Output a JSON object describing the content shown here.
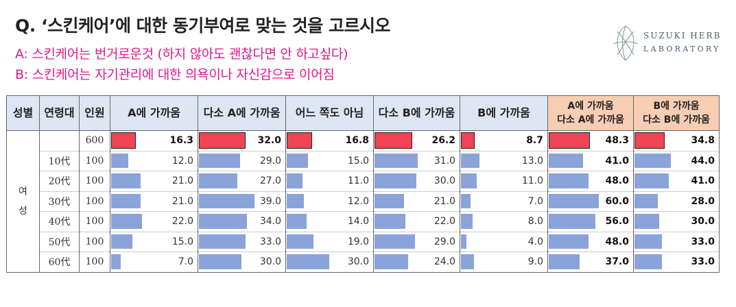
{
  "title": "Q. ‘스킨케어’에 대한 동기부여로 맞는 것을 고르시오",
  "option_a": "A: 스킨케어는 번거로운것 (하지 않아도 괜찮다면 안 하고싶다)",
  "option_b": "B: 스킨케어는 자기관리에 대한 의욕이나 자신감으로 이어짐",
  "logo": {
    "line1": "SUZUKI HERB",
    "line2": "LABORATORY"
  },
  "chart_data": {
    "type": "table",
    "columns": [
      "성별",
      "연령대",
      "인원",
      "A에 가까움",
      "다소 A에 가까움",
      "어느 쪽도 아님",
      "다소 B에 가까움",
      "B에 가까움",
      "A에 가까움\n다소 A에 가까움",
      "B에 가까움\n다소 B에 가까움"
    ],
    "gender": "여성",
    "rows": [
      {
        "age": "",
        "n": "600",
        "values": [
          16.3,
          32.0,
          16.8,
          26.2,
          8.7,
          48.3,
          34.8
        ]
      },
      {
        "age": "10代",
        "n": "100",
        "values": [
          12.0,
          29.0,
          15.0,
          31.0,
          13.0,
          41.0,
          44.0
        ]
      },
      {
        "age": "20代",
        "n": "100",
        "values": [
          21.0,
          27.0,
          11.0,
          30.0,
          11.0,
          48.0,
          41.0
        ]
      },
      {
        "age": "30代",
        "n": "100",
        "values": [
          21.0,
          39.0,
          12.0,
          21.0,
          7.0,
          60.0,
          28.0
        ]
      },
      {
        "age": "40代",
        "n": "100",
        "values": [
          22.0,
          34.0,
          14.0,
          22.0,
          8.0,
          56.0,
          30.0
        ]
      },
      {
        "age": "50代",
        "n": "100",
        "values": [
          15.0,
          33.0,
          19.0,
          29.0,
          4.0,
          48.0,
          33.0
        ]
      },
      {
        "age": "60代",
        "n": "100",
        "values": [
          7.0,
          30.0,
          30.0,
          24.0,
          9.0,
          37.0,
          33.0
        ]
      }
    ],
    "bar_scale_max": [
      60,
      60,
      60,
      60,
      60,
      100,
      100
    ],
    "colors": {
      "total_bar": "#f04356",
      "bar": "#8aa3d9",
      "header": "#dde6f2",
      "header_highlight": "#f7cdb3",
      "option_text": "#e4168a"
    }
  }
}
